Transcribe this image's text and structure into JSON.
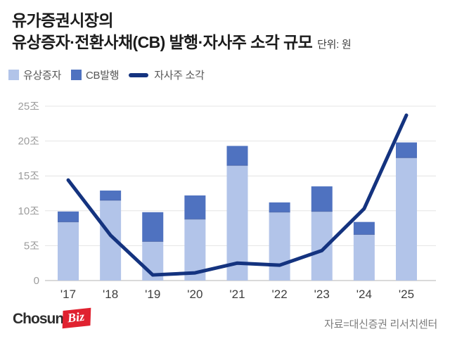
{
  "header": {
    "title_line1": "유가증권시장의",
    "title_line2": "유상증자·전환사채(CB) 발행·자사주 소각 규모",
    "unit": "단위: 원"
  },
  "legend": [
    {
      "label": "유상증자",
      "swatch": "square",
      "color": "#b2c4e9"
    },
    {
      "label": "CB발행",
      "swatch": "square",
      "color": "#4f72c0"
    },
    {
      "label": "자사주 소각",
      "swatch": "line",
      "color": "#14337f"
    }
  ],
  "chart_data": {
    "type": "bar",
    "subtype": "stacked-bar-with-line",
    "title": "유가증권시장의 유상증자·전환사채(CB) 발행·자사주 소각 규모",
    "unit": "조 원",
    "categories": [
      "'17",
      "'18",
      "'19",
      "'20",
      "'21",
      "'22",
      "'23",
      "'24",
      "'25"
    ],
    "bar_series": [
      {
        "name": "유상증자",
        "color": "#b2c4e9",
        "values": [
          8.4,
          11.5,
          5.6,
          8.8,
          16.5,
          9.8,
          9.9,
          6.6,
          17.6
        ]
      },
      {
        "name": "CB발행",
        "color": "#4f72c0",
        "values": [
          1.5,
          1.4,
          4.2,
          3.4,
          2.8,
          1.4,
          3.6,
          1.8,
          2.2
        ]
      }
    ],
    "line_series": {
      "name": "자사주 소각",
      "color": "#14337f",
      "values": [
        14.4,
        6.5,
        0.8,
        1.1,
        2.5,
        2.2,
        4.3,
        10.3,
        23.7
      ]
    },
    "stacked": true,
    "grid": true,
    "legend_position": "top",
    "xlabel": "",
    "ylabel": "",
    "ylim": [
      0,
      25
    ],
    "yticks": [
      {
        "v": 0,
        "label": "0"
      },
      {
        "v": 5,
        "label": "5조"
      },
      {
        "v": 10,
        "label": "10조"
      },
      {
        "v": 15,
        "label": "15조"
      },
      {
        "v": 20,
        "label": "20조"
      },
      {
        "v": 25,
        "label": "25조"
      }
    ]
  },
  "footer": {
    "logo": {
      "part1": "Chosun",
      "part2": "Biz"
    },
    "source": "자료=대신증권 리서치센터"
  },
  "colors": {
    "bar_light": "#b2c4e9",
    "bar_dark": "#4f72c0",
    "line": "#14337f",
    "gridline": "#e4e4e4",
    "axis": "#b3b3b3",
    "logo_red": "#e02230"
  }
}
